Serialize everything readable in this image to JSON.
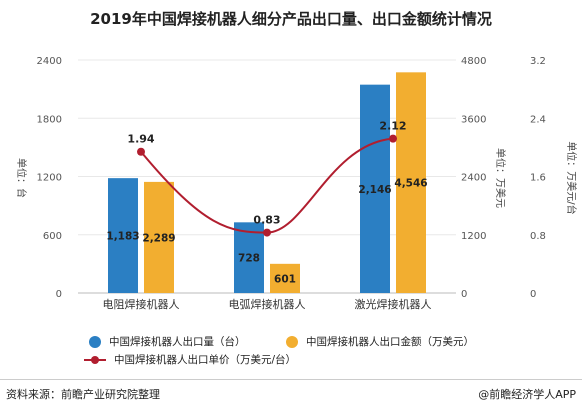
{
  "title": "2019年中国焊接机器人细分产品出口量、出口金额统计情况",
  "left_axis_unit": "单位：台",
  "right_axis1_unit": "单位：万美元",
  "right_axis2_unit": "单位：万美元/台",
  "legend": {
    "qty": "中国焊接机器人出口量（台）",
    "amount": "中国焊接机器人出口金额（万美元）",
    "price": "中国焊接机器人出口单价（万美元/台）"
  },
  "footer": {
    "source": "资料来源：前瞻产业研究院整理",
    "credit": "@前瞻经济学人APP"
  },
  "colors": {
    "qty": "#2b7fc3",
    "amount": "#f2ae30",
    "price": "#b11e2f"
  },
  "chart_data": {
    "type": "bar",
    "categories": [
      "电阻焊接机器人",
      "电弧焊接机器人",
      "激光焊接机器人"
    ],
    "series": [
      {
        "name": "中国焊接机器人出口量（台）",
        "axis": "left",
        "values": [
          1183,
          728,
          2146
        ],
        "labels": [
          "1,183",
          "728",
          "2,146"
        ]
      },
      {
        "name": "中国焊接机器人出口金额（万美元）",
        "axis": "right1",
        "values": [
          2289,
          601,
          4546
        ],
        "labels": [
          "2,289",
          "601",
          "4,546"
        ]
      },
      {
        "name": "中国焊接机器人出口单价（万美元/台）",
        "axis": "right2",
        "type": "line",
        "values": [
          1.94,
          0.83,
          2.12
        ],
        "labels": [
          "1.94",
          "0.83",
          "2.12"
        ]
      }
    ],
    "left_axis": {
      "ticks": [
        "0",
        "600",
        "1200",
        "1800",
        "2400"
      ],
      "ylim": [
        0,
        2400
      ]
    },
    "right_axis1": {
      "ticks": [
        "0",
        "1200",
        "2400",
        "3600",
        "4800"
      ],
      "ylim": [
        0,
        4800
      ]
    },
    "right_axis2": {
      "ticks": [
        "0",
        "0.8",
        "1.6",
        "2.4",
        "3.2"
      ],
      "ylim": [
        0,
        3.2
      ]
    },
    "legend_position": "bottom"
  }
}
